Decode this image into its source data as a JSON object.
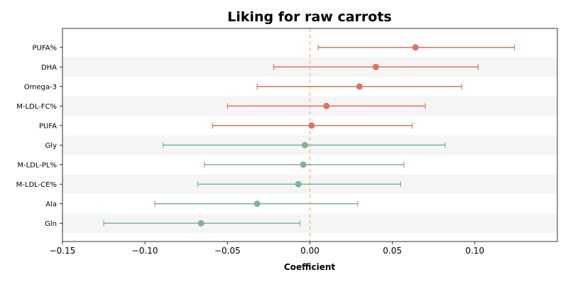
{
  "chart_data": {
    "type": "forest",
    "title": "Liking for raw carrots",
    "xlabel": "Coefficient",
    "xlim": [
      -0.15,
      0.15
    ],
    "xticks": [
      -0.15,
      -0.1,
      -0.05,
      0.0,
      0.05,
      0.1
    ],
    "xtick_labels": [
      "−0.15",
      "−0.10",
      "−0.05",
      "0.00",
      "0.05",
      "0.10"
    ],
    "zero_line": true,
    "categories": [
      "PUFA%",
      "DHA",
      "Omega-3",
      "M-LDL-FC%",
      "PUFA",
      "Gly",
      "M-LDL-PL%",
      "M-LDL-CE%",
      "Ala",
      "Gln"
    ],
    "points": [
      {
        "label": "PUFA%",
        "estimate": 0.064,
        "ci_low": 0.005,
        "ci_high": 0.124,
        "group": "positive"
      },
      {
        "label": "DHA",
        "estimate": 0.04,
        "ci_low": -0.022,
        "ci_high": 0.102,
        "group": "positive"
      },
      {
        "label": "Omega-3",
        "estimate": 0.03,
        "ci_low": -0.032,
        "ci_high": 0.092,
        "group": "positive"
      },
      {
        "label": "M-LDL-FC%",
        "estimate": 0.01,
        "ci_low": -0.05,
        "ci_high": 0.07,
        "group": "positive"
      },
      {
        "label": "PUFA",
        "estimate": 0.001,
        "ci_low": -0.059,
        "ci_high": 0.062,
        "group": "positive"
      },
      {
        "label": "Gly",
        "estimate": -0.003,
        "ci_low": -0.089,
        "ci_high": 0.082,
        "group": "negative"
      },
      {
        "label": "M-LDL-PL%",
        "estimate": -0.004,
        "ci_low": -0.064,
        "ci_high": 0.057,
        "group": "negative"
      },
      {
        "label": "M-LDL-CE%",
        "estimate": -0.007,
        "ci_low": -0.068,
        "ci_high": 0.055,
        "group": "negative"
      },
      {
        "label": "Ala",
        "estimate": -0.032,
        "ci_low": -0.094,
        "ci_high": 0.029,
        "group": "negative"
      },
      {
        "label": "Gln",
        "estimate": -0.066,
        "ci_low": -0.125,
        "ci_high": -0.006,
        "group": "negative"
      }
    ],
    "colors": {
      "positive": "#d9765a",
      "negative": "#7db39a",
      "zero_line": "#f5c27a",
      "band": "#f5f5f5"
    },
    "grid": false,
    "legend": "none"
  }
}
